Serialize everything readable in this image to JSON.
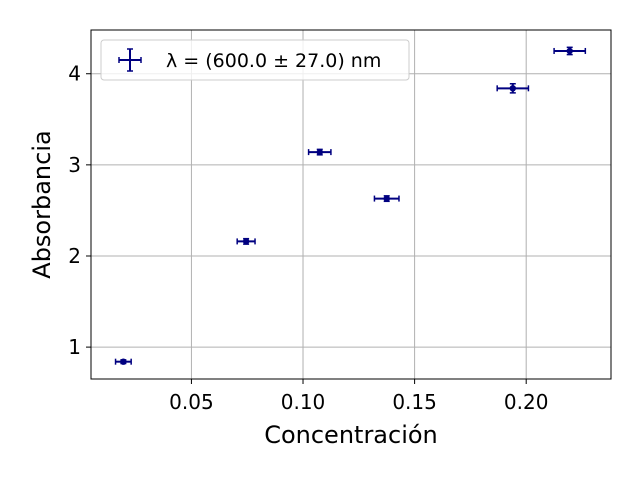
{
  "chart_data": {
    "type": "scatter",
    "xlabel": "Concentración",
    "ylabel": "Absorbancia",
    "xlim": [
      0.005,
      0.238
    ],
    "ylim": [
      0.65,
      4.48
    ],
    "x_ticks": [
      0.05,
      0.1,
      0.15,
      0.2
    ],
    "x_tick_labels": [
      "0.05",
      "0.10",
      "0.15",
      "0.20"
    ],
    "y_ticks": [
      1,
      2,
      3,
      4
    ],
    "y_tick_labels": [
      "1",
      "2",
      "3",
      "4"
    ],
    "grid": true,
    "legend_position": "top-left",
    "series": [
      {
        "name": "λ = (600.0 ± 27.0) nm",
        "color": "#000080",
        "points": [
          {
            "x": 0.0195,
            "y": 0.84,
            "xerr": 0.0035,
            "yerr": 0.02
          },
          {
            "x": 0.0745,
            "y": 2.16,
            "xerr": 0.004,
            "yerr": 0.03
          },
          {
            "x": 0.1075,
            "y": 3.14,
            "xerr": 0.005,
            "yerr": 0.03
          },
          {
            "x": 0.1375,
            "y": 2.63,
            "xerr": 0.0055,
            "yerr": 0.03
          },
          {
            "x": 0.194,
            "y": 3.84,
            "xerr": 0.007,
            "yerr": 0.05
          },
          {
            "x": 0.2195,
            "y": 4.25,
            "xerr": 0.007,
            "yerr": 0.04
          }
        ]
      }
    ]
  }
}
